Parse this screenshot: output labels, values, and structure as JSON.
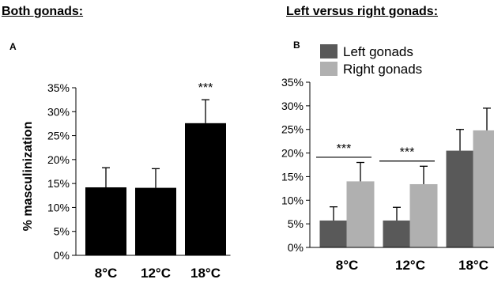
{
  "headings": {
    "left": "Both gonads:",
    "right": "Left versus right gonads:"
  },
  "chart_data": [
    {
      "type": "bar",
      "panel": "A",
      "categories": [
        "8°C",
        "12°C",
        "18°C"
      ],
      "series": [
        {
          "values": [
            14.2,
            14.1,
            27.6
          ],
          "errors": [
            4.1,
            4.0,
            4.9
          ],
          "color": "#000000"
        }
      ],
      "significance": [
        null,
        null,
        "***"
      ],
      "ylabel": "% masculinization",
      "yticks": [
        "0%",
        "5%",
        "10%",
        "15%",
        "20%",
        "25%",
        "30%",
        "35%"
      ],
      "ylim": [
        0,
        35
      ],
      "grid": false,
      "legend": null
    },
    {
      "type": "bar",
      "panel": "B",
      "categories": [
        "8°C",
        "12°C",
        "18°C"
      ],
      "series": [
        {
          "name": "Left gonads",
          "values": [
            5.7,
            5.7,
            20.5
          ],
          "errors": [
            2.9,
            2.8,
            4.5
          ],
          "color": "#595959"
        },
        {
          "name": "Right gonads",
          "values": [
            14.0,
            13.4,
            24.8
          ],
          "errors": [
            4.0,
            3.8,
            4.7
          ],
          "color": "#b0b0b0"
        }
      ],
      "significance": [
        "***",
        "***",
        null
      ],
      "ylabel": "",
      "yticks": [
        "0%",
        "5%",
        "10%",
        "15%",
        "20%",
        "25%",
        "30%",
        "35%"
      ],
      "ylim": [
        0,
        35
      ],
      "grid": false,
      "legend": "top-left"
    }
  ]
}
